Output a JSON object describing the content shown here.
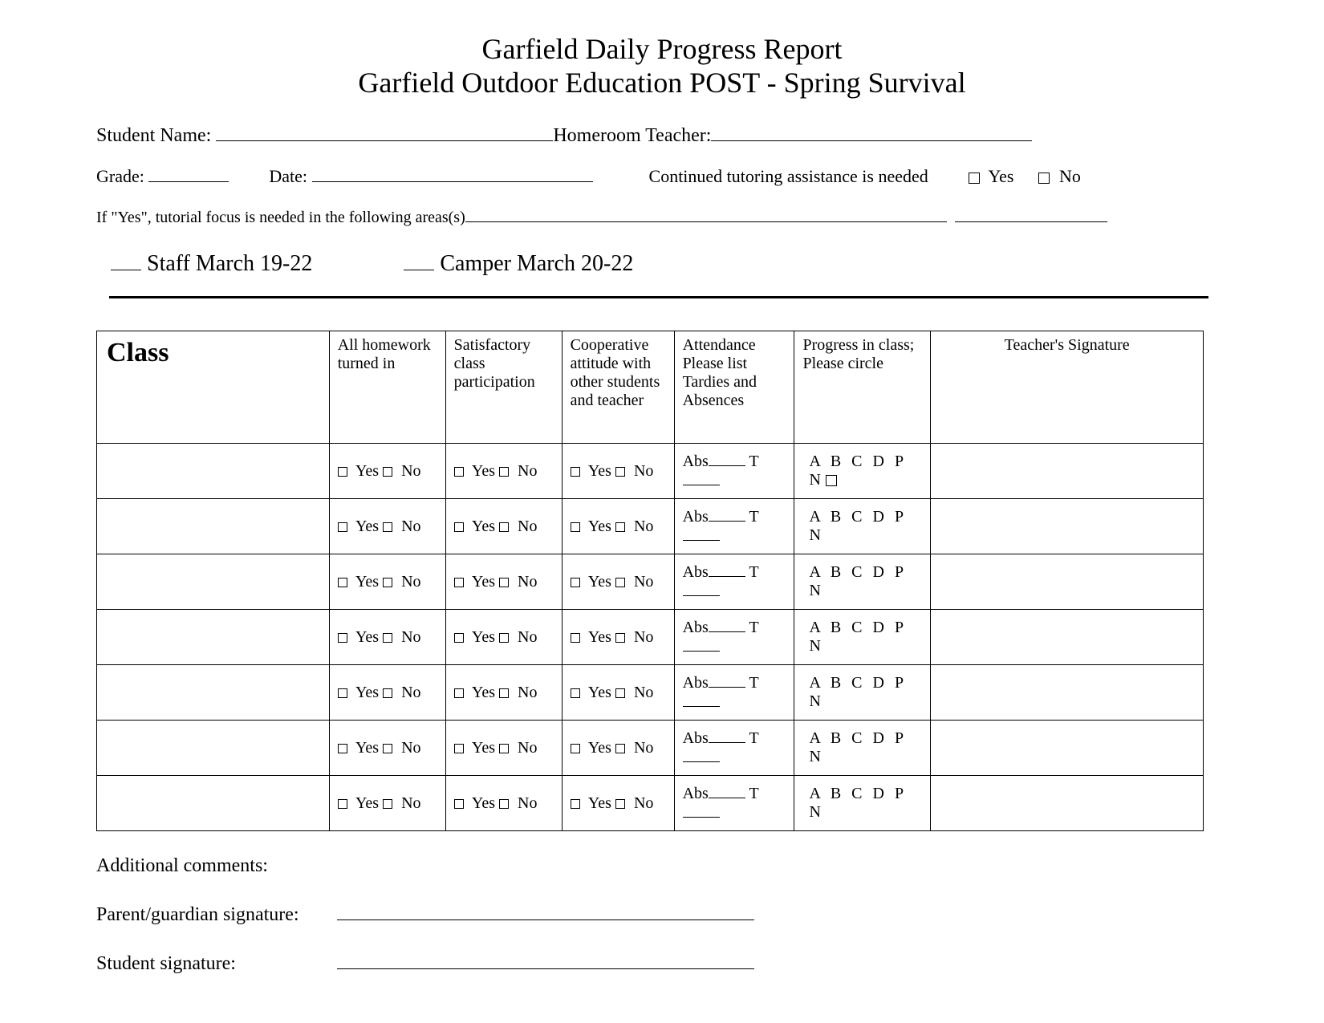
{
  "title": {
    "line1": "Garfield Daily Progress Report",
    "line2": "Garfield Outdoor Education POST - Spring Survival"
  },
  "labels": {
    "student_name": "Student Name: ",
    "homeroom_teacher": "Homeroom Teacher:",
    "grade": "Grade: ",
    "date": "Date: ",
    "tutoring_needed": "Continued tutoring assistance is needed",
    "yes": "Yes",
    "no": "No",
    "focus_areas": "If \"Yes\", tutorial focus is needed in the following areas(s) ",
    "staff": "Staff  March 19-22",
    "camper": "Camper  March 20-22",
    "additional_comments": "Additional comments:",
    "parent_signature": "Parent/guardian signature:",
    "student_signature": "Student signature:"
  },
  "table": {
    "headers": {
      "class": "Class",
      "homework": "All homework turned in",
      "satisfactory": "Satisfactory class participation",
      "cooperative": "Cooperative attitude with other students and teacher",
      "attendance": "Attendance Please list Tardies and Absences",
      "progress": "Progress in class;\nPlease circle",
      "signature": "Teacher's Signature"
    },
    "cell_text": {
      "yes": "Yes",
      "no": "No",
      "abs": "Abs",
      "t": "T",
      "grades": "A B C D P N",
      "grades_box": "A B C D P N"
    },
    "row_count": 7
  },
  "style": {
    "background_color": "#ffffff",
    "text_color": "#000000",
    "border_color": "#000000",
    "title_fontsize": 36,
    "body_fontsize": 24,
    "table_fontsize": 20,
    "class_header_fontsize": 34,
    "role_fontsize": 28,
    "font_family": "Times New Roman"
  }
}
